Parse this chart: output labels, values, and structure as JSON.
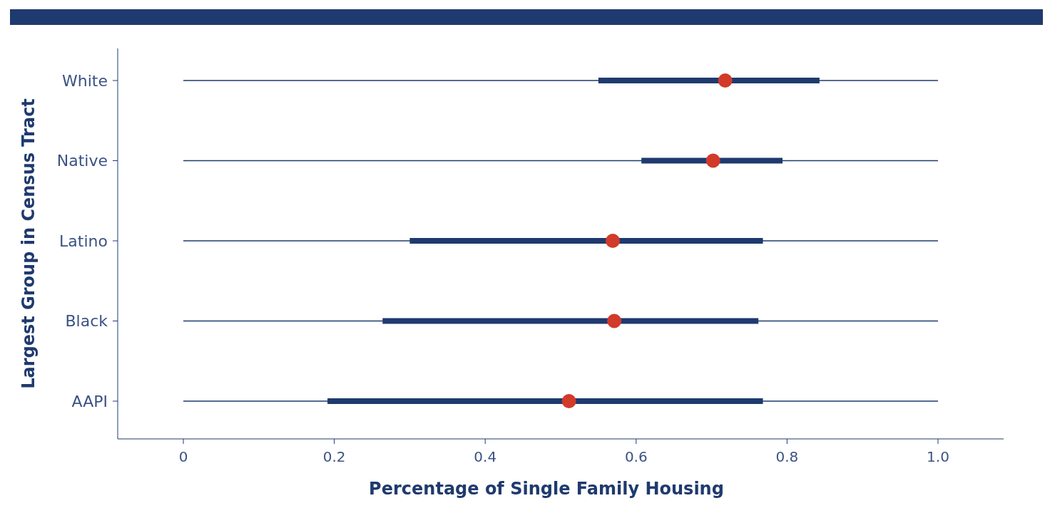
{
  "chart_data": {
    "type": "box",
    "orientation": "horizontal",
    "xlabel": "Percentage of Single Family Housing",
    "ylabel": "Largest Group in Census Tract",
    "categories": [
      "White",
      "Native",
      "Latino",
      "Black",
      "AAPI"
    ],
    "series": [
      {
        "color": "#1f3a6e",
        "boxes": [
          {
            "low": 0,
            "q1": 0.55,
            "median": 0.718,
            "q3": 0.843,
            "high": 1
          },
          {
            "low": 0,
            "q1": 0.607,
            "median": 0.702,
            "q3": 0.794,
            "high": 1
          },
          {
            "low": 0,
            "q1": 0.3,
            "median": 0.569,
            "q3": 0.768,
            "high": 1
          },
          {
            "low": 0,
            "q1": 0.264,
            "median": 0.571,
            "q3": 0.762,
            "high": 1
          },
          {
            "low": 0,
            "q1": 0.191,
            "median": 0.511,
            "q3": 0.768,
            "high": 1
          }
        ]
      }
    ],
    "xlim": [
      -0.087,
      1.087
    ],
    "xticks": [
      0,
      0.2,
      0.4,
      0.6,
      0.8,
      {
        "value": 1,
        "label": "1.0"
      }
    ],
    "grid": false
  }
}
